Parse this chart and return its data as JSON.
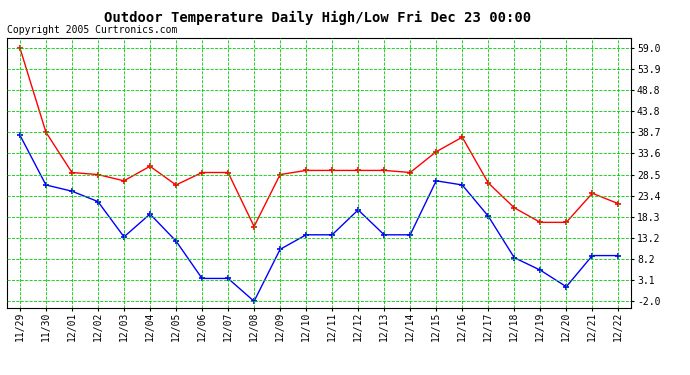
{
  "title": "Outdoor Temperature Daily High/Low Fri Dec 23 00:00",
  "copyright": "Copyright 2005 Curtronics.com",
  "x_labels": [
    "11/29",
    "11/30",
    "12/01",
    "12/02",
    "12/03",
    "12/04",
    "12/05",
    "12/06",
    "12/07",
    "12/08",
    "12/09",
    "12/10",
    "12/11",
    "12/12",
    "12/13",
    "12/14",
    "12/15",
    "12/16",
    "12/17",
    "12/18",
    "12/19",
    "12/20",
    "12/21",
    "12/22"
  ],
  "high_values": [
    59.0,
    38.7,
    29.0,
    28.5,
    27.0,
    30.5,
    26.0,
    29.0,
    29.0,
    16.0,
    28.5,
    29.5,
    29.5,
    29.5,
    29.5,
    29.0,
    34.0,
    37.5,
    26.5,
    20.5,
    17.0,
    17.0,
    24.0,
    21.5
  ],
  "low_values": [
    38.0,
    26.0,
    24.5,
    22.0,
    13.5,
    19.0,
    12.5,
    3.5,
    3.5,
    -2.0,
    10.5,
    14.0,
    14.0,
    20.0,
    14.0,
    14.0,
    27.0,
    26.0,
    18.5,
    8.5,
    5.5,
    1.5,
    9.0,
    9.0
  ],
  "high_color": "#ff0000",
  "low_color": "#0000ff",
  "grid_color": "#00cc00",
  "bg_color": "#ffffff",
  "yticks": [
    -2.0,
    3.1,
    8.2,
    13.2,
    18.3,
    23.4,
    28.5,
    33.6,
    38.7,
    43.8,
    48.8,
    53.9,
    59.0
  ],
  "ylim": [
    -3.5,
    61.5
  ],
  "title_fontsize": 10,
  "tick_fontsize": 7,
  "copyright_fontsize": 7
}
